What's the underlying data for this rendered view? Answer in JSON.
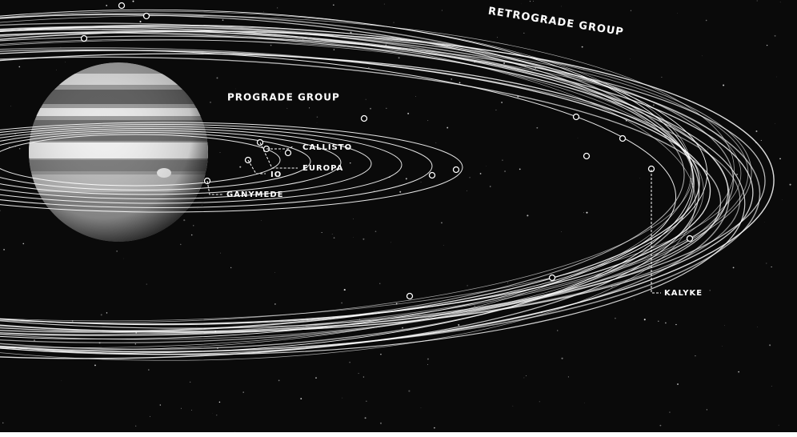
{
  "labels": {
    "retrograde_group": "RETROGRADE GROUP",
    "prograde_group": "PROGRADE GROUP"
  },
  "moons": [
    "CALLISTO",
    "EUROPA",
    "IO",
    "GANYMEDE",
    "KALYKE"
  ]
}
